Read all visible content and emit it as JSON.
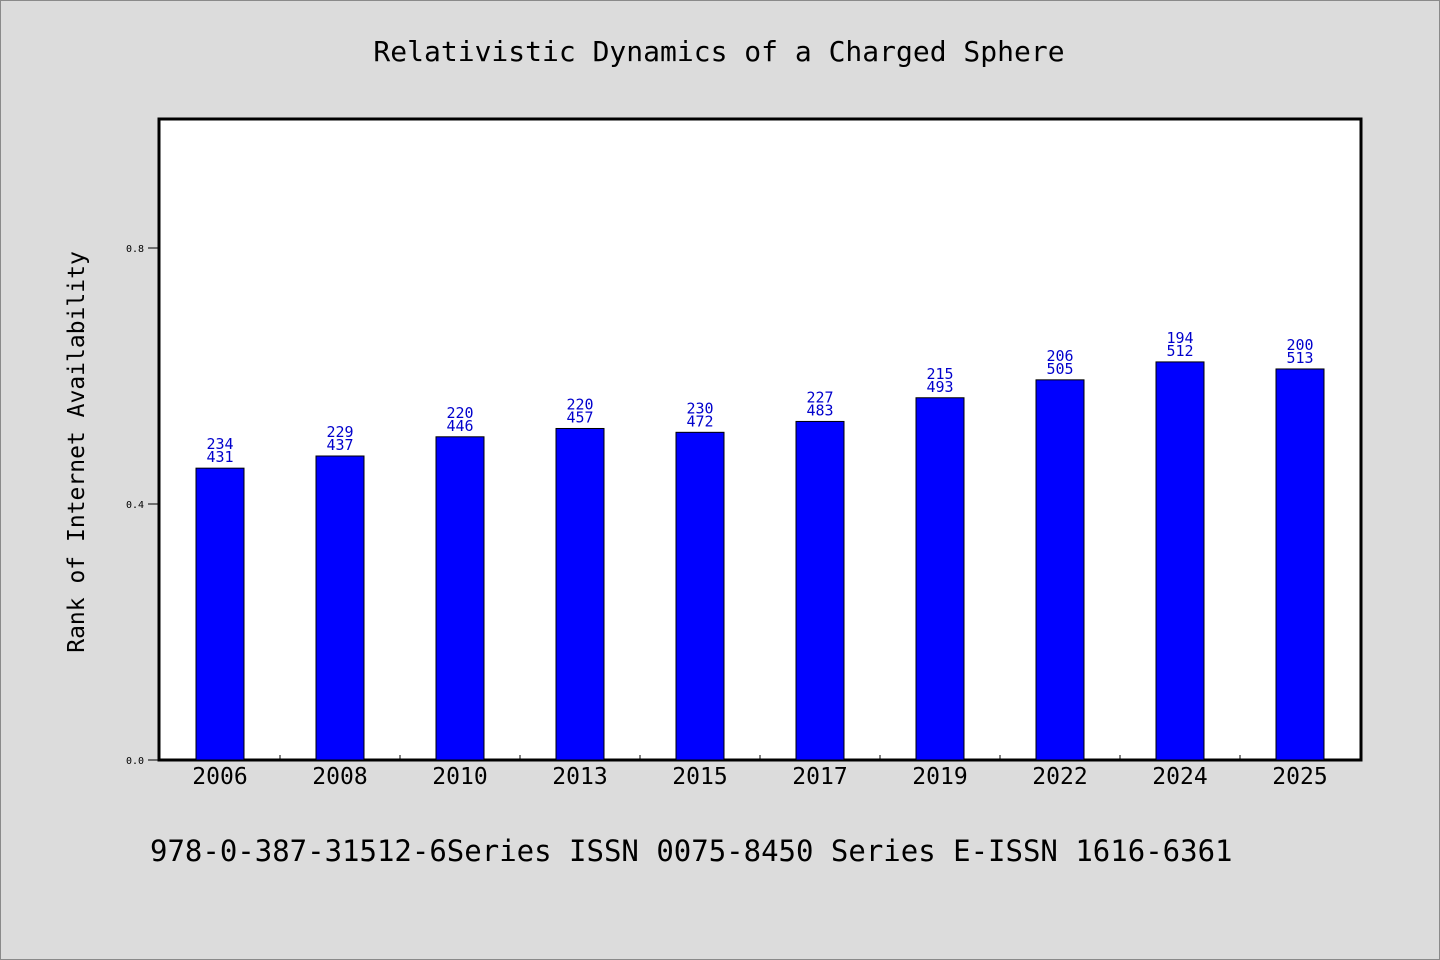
{
  "chart_data": {
    "type": "bar",
    "title": "Relativistic Dynamics of a Charged Sphere",
    "xlabel": "",
    "ylabel": "Rank of Internet Availability",
    "categories": [
      "2006",
      "2008",
      "2010",
      "2013",
      "2015",
      "2017",
      "2019",
      "2022",
      "2024",
      "2025"
    ],
    "values": [
      0.456,
      0.475,
      0.505,
      0.518,
      0.512,
      0.529,
      0.566,
      0.594,
      0.622,
      0.611
    ],
    "data_labels": [
      [
        "234",
        "431"
      ],
      [
        "229",
        "437"
      ],
      [
        "220",
        "446"
      ],
      [
        "220",
        "457"
      ],
      [
        "230",
        "472"
      ],
      [
        "227",
        "483"
      ],
      [
        "215",
        "493"
      ],
      [
        "206",
        "505"
      ],
      [
        "194",
        "512"
      ],
      [
        "200",
        "513"
      ]
    ],
    "ylim": [
      0,
      1.0
    ],
    "yticks": [
      0.0,
      0.4,
      0.8
    ],
    "ytick_labels": [
      "0.0",
      "0.4",
      "0.8"
    ],
    "grid": false,
    "colors": {
      "bar": "#0000ff",
      "label": "#0000cc",
      "background": "#dcdcdc",
      "plot_background": "#ffffff"
    }
  },
  "footer": {
    "note": "978-0-387-31512-6Series ISSN 0075-8450 Series E-ISSN 1616-6361"
  }
}
